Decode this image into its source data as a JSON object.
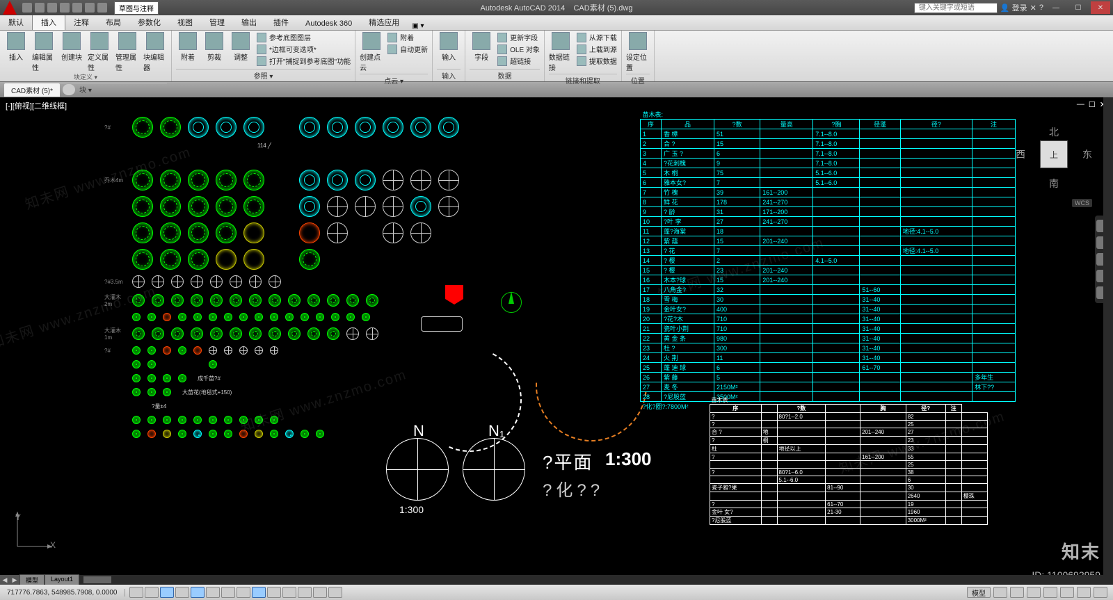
{
  "app": {
    "product": "Autodesk AutoCAD 2014",
    "file": "CAD素材 (5).dwg"
  },
  "titlebar": {
    "combo": "草图与注释",
    "search_placeholder": "键入关键字或短语",
    "login": "登录",
    "help": "?"
  },
  "ribbon_tabs": [
    {
      "label": "默认"
    },
    {
      "label": "插入",
      "active": true
    },
    {
      "label": "注释"
    },
    {
      "label": "布局"
    },
    {
      "label": "参数化"
    },
    {
      "label": "视图"
    },
    {
      "label": "管理"
    },
    {
      "label": "输出"
    },
    {
      "label": "插件"
    },
    {
      "label": "Autodesk 360"
    },
    {
      "label": "精选应用"
    }
  ],
  "panels": {
    "block": {
      "title": "块 ▾",
      "big": [
        {
          "l": "插入"
        },
        {
          "l": "编辑属性"
        },
        {
          "l": "创建块"
        },
        {
          "l": "定义属性"
        },
        {
          "l": "管理属性"
        },
        {
          "l": "块编辑器"
        }
      ],
      "sub": "块定义 ▾"
    },
    "reference": {
      "title": "参照 ▾",
      "small": [
        {
          "l": "附着"
        },
        {
          "l": "剪裁"
        },
        {
          "l": "调整"
        }
      ],
      "lines": [
        "参考底图图层",
        "*边框可变迭项*",
        "打开\"捕捉到参考底图\"功能"
      ]
    },
    "cloud": {
      "title": "点云 ▾",
      "big": [
        {
          "l": "创建点云"
        }
      ],
      "lines": [
        "附着",
        "自动更新"
      ]
    },
    "import": {
      "title": "输入",
      "big": [
        {
          "l": "输入"
        }
      ]
    },
    "data": {
      "title": "数据",
      "big": [
        {
          "l": "字段"
        }
      ],
      "lines": [
        "更新字段",
        "OLE 对象",
        "超链接"
      ]
    },
    "link": {
      "title": "链接和提取",
      "big": [
        {
          "l": "数据链接"
        }
      ],
      "lines": [
        "从源下载",
        "上载到源",
        "提取数据"
      ]
    },
    "loc": {
      "title": "位置",
      "big": [
        {
          "l": "设定位置"
        }
      ]
    }
  },
  "file_tab": "CAD素材 (5)*",
  "view_label": "[-][俯视][二维线框]",
  "viewcube": {
    "n": "北",
    "s": "南",
    "e": "东",
    "w": "西",
    "face": "上",
    "wcs": "WCS"
  },
  "symbol_rows": [
    {
      "lbl": "?#",
      "cells": [
        "g",
        "g",
        "c",
        "c",
        "c",
        "",
        "c",
        "c",
        "c",
        "c",
        "c",
        "c"
      ]
    },
    {
      "lbl": "",
      "dim": "114",
      "cells": [
        "",
        "",
        "",
        "",
        "",
        "",
        "",
        "",
        "",
        "",
        ""
      ]
    },
    {
      "lbl": "乔木4m",
      "cells": [
        "g",
        "g",
        "g",
        "g",
        "g",
        "",
        "c",
        "c",
        "c",
        "w",
        "w",
        "w"
      ]
    },
    {
      "lbl": "",
      "cells": [
        "g",
        "g",
        "g",
        "g",
        "g",
        "",
        "c",
        "w",
        "w",
        "w",
        "c",
        "w"
      ]
    },
    {
      "lbl": "",
      "cells": [
        "g",
        "g",
        "g",
        "g",
        "y",
        "",
        "r",
        "w",
        "",
        "w",
        "w",
        ""
      ]
    },
    {
      "lbl": "",
      "cells": [
        "g",
        "g",
        "g",
        "y",
        "y",
        "",
        "g",
        "",
        "",
        "",
        "",
        ""
      ]
    },
    {
      "lbl": "?#3.5m",
      "size": "shrub",
      "cells": [
        "w",
        "w",
        "w",
        "w",
        "w",
        "w",
        "w",
        "w",
        "",
        "",
        "",
        ""
      ]
    },
    {
      "lbl": "大灌木2m",
      "size": "shrub",
      "cells": [
        "g",
        "g",
        "g",
        "g",
        "g",
        "g",
        "g",
        "g",
        "g",
        "g",
        "g",
        "g",
        "g"
      ]
    },
    {
      "lbl": "",
      "size": "tiny",
      "cells": [
        "g",
        "g",
        "r",
        "g",
        "g",
        "g",
        "g",
        "g",
        "g",
        "g",
        "g",
        "g",
        "g",
        "g",
        "g",
        "g"
      ]
    },
    {
      "lbl": "大灌木1m",
      "size": "shrub",
      "cells": [
        "g",
        "g",
        "g",
        "g",
        "g",
        "g",
        "g",
        "g",
        "g",
        "g",
        "g",
        "w",
        "w"
      ]
    },
    {
      "lbl": "?#",
      "size": "tiny",
      "cells": [
        "g",
        "g",
        "r",
        "g",
        "r",
        "w",
        "w",
        "w",
        "w",
        "w",
        "",
        "",
        "",
        ""
      ]
    },
    {
      "lbl": "",
      "size": "tiny",
      "cells": [
        "g",
        "g",
        "",
        "",
        "",
        "g",
        "",
        "",
        "",
        "",
        "",
        ""
      ]
    },
    {
      "lbl": "",
      "caption": "成千苗?#",
      "size": "tiny",
      "cells": [
        "g",
        "g",
        "g",
        "g"
      ]
    },
    {
      "lbl": "",
      "caption": "大苗花(地毯式+150)",
      "size": "tiny",
      "cells": [
        "g",
        "g",
        "g"
      ]
    },
    {
      "lbl": "",
      "caption": "?量±4",
      "size": "tiny",
      "cells": [
        ""
      ]
    },
    {
      "lbl": "",
      "size": "tiny",
      "cells": [
        "g",
        "g",
        "g",
        "g",
        "g",
        "g",
        "g",
        "g",
        "g",
        "g"
      ]
    },
    {
      "lbl": "",
      "size": "tiny",
      "cells": [
        "g",
        "r",
        "y",
        "g",
        "c",
        "g",
        "g",
        "r",
        "y",
        "g",
        "c",
        "g",
        "g"
      ]
    }
  ],
  "compass1": {
    "N": "N",
    "scale": "1:300"
  },
  "compass2": {
    "N": "N₁"
  },
  "bigtext": {
    "a": "?平面",
    "b": "1:300",
    "c": "?化??"
  },
  "plant_table": {
    "title": "苗木表:",
    "columns": [
      "序",
      "品",
      "?数",
      "量高",
      "?胸",
      "径蓬",
      "径?",
      "注"
    ],
    "rows": [
      [
        "1",
        "香  樟",
        "51",
        "",
        "7.1--8.0",
        "",
        "",
        ""
      ],
      [
        "2",
        "合  ?",
        "15",
        "",
        "7.1--8.0",
        "",
        "",
        ""
      ],
      [
        "3",
        "广 玉 ?",
        "6",
        "",
        "7.1--8.0",
        "",
        "",
        ""
      ],
      [
        "4",
        "?花刺槐",
        "9",
        "",
        "7.1--8.0",
        "",
        "",
        ""
      ],
      [
        "5",
        "木  桐",
        "75",
        "",
        "5.1--6.0",
        "",
        "",
        ""
      ],
      [
        "6",
        "雅本女?",
        "7",
        "",
        "5.1--6.0",
        "",
        "",
        ""
      ],
      [
        "7",
        "竹  槐",
        "39",
        "161--200",
        "",
        "",
        "",
        ""
      ],
      [
        "8",
        "鲜  花",
        "178",
        "241--270",
        "",
        "",
        "",
        ""
      ],
      [
        "9",
        "?  龄",
        "31",
        "171--200",
        "",
        "",
        "",
        ""
      ],
      [
        "10",
        "?叶  李",
        "27",
        "241--270",
        "",
        "",
        "",
        ""
      ],
      [
        "11",
        "蓬?海棠",
        "18",
        "",
        "",
        "",
        "地径:4.1--5.0",
        ""
      ],
      [
        "12",
        "紫  蕴",
        "15",
        "201--240",
        "",
        "",
        "",
        ""
      ],
      [
        "13",
        "?  花",
        "7",
        "",
        "",
        "",
        "地径:4.1--5.0",
        ""
      ],
      [
        "14",
        "?  樱",
        "2",
        "",
        "4.1--5.0",
        "",
        "",
        ""
      ],
      [
        "15",
        "?  樱",
        "23",
        "201--240",
        "",
        "",
        "",
        ""
      ],
      [
        "16",
        "木本?球",
        "15",
        "201--240",
        "",
        "",
        "",
        ""
      ],
      [
        "17",
        "八角金?",
        "32",
        "",
        "",
        "51--60",
        "",
        ""
      ],
      [
        "18",
        "雪  梅",
        "30",
        "",
        "",
        "31--40",
        "",
        ""
      ],
      [
        "19",
        "金叶女?",
        "400",
        "",
        "",
        "31--40",
        "",
        ""
      ],
      [
        "20",
        "?花?木",
        "710",
        "",
        "",
        "31--40",
        "",
        ""
      ],
      [
        "21",
        "瓷叶小荆",
        "710",
        "",
        "",
        "31--40",
        "",
        ""
      ],
      [
        "22",
        "黄 金 条",
        "980",
        "",
        "",
        "31--40",
        "",
        ""
      ],
      [
        "23",
        "杜  ?",
        "300",
        "",
        "",
        "31--40",
        "",
        ""
      ],
      [
        "24",
        "火  荆",
        "11",
        "",
        "",
        "31--40",
        "",
        ""
      ],
      [
        "25",
        "蓬 迪 球",
        "6",
        "",
        "",
        "61--70",
        "",
        ""
      ],
      [
        "26",
        "紫  藤",
        "5",
        "",
        "",
        "",
        "",
        "多年生"
      ],
      [
        "27",
        "麦  冬",
        "2150M²",
        "",
        "",
        "",
        "",
        "林下??"
      ],
      [
        "28",
        "?尼股蓝",
        "3500M²",
        "",
        "",
        "",
        "",
        ""
      ]
    ],
    "footer": "?化?圈?:7800M²"
  },
  "small_table": {
    "title": "苗木表",
    "columns": [
      "序",
      "",
      "?数",
      "",
      "胸",
      "径?",
      "注"
    ],
    "rows": [
      [
        "?",
        "",
        "80?1--2.0",
        "",
        "",
        "82",
        "",
        ""
      ],
      [
        "?",
        "",
        "",
        "",
        "",
        "25",
        "",
        ""
      ],
      [
        "合 ?",
        "地",
        "",
        "",
        "201--240",
        "27",
        "",
        ""
      ],
      [
        "?",
        "桐",
        "",
        "",
        "",
        "23",
        "",
        ""
      ],
      [
        "杜",
        "",
        "地径以上",
        "",
        "",
        "33",
        "",
        ""
      ],
      [
        "?",
        "",
        "",
        "",
        "161--200",
        "55",
        "",
        ""
      ],
      [
        "",
        "",
        "",
        "",
        "",
        "25",
        "",
        ""
      ],
      [
        "?",
        "",
        "80?1--6.0",
        "",
        "",
        "38",
        "",
        ""
      ],
      [
        "",
        "",
        "5.1--6.0",
        "",
        "",
        "6",
        "",
        ""
      ],
      [
        "瓷子雅?果",
        "",
        "",
        "81--90",
        "",
        "30",
        "",
        ""
      ],
      [
        "",
        "",
        "",
        "",
        "",
        "2640",
        "",
        "樱珠"
      ],
      [
        "?",
        "",
        "",
        "61--70",
        "",
        "19",
        "",
        ""
      ],
      [
        "金叶 女?",
        "",
        "",
        "21-30",
        "",
        "1960",
        "",
        ""
      ],
      [
        "?尼股蓝",
        "",
        "",
        "",
        "",
        "3000M²",
        "",
        ""
      ]
    ]
  },
  "layout_tabs": {
    "model": "模型",
    "layout1": "Layout1"
  },
  "status": {
    "coords": "717776.7863, 548985.7908, 0.0000",
    "right_label": "模型"
  },
  "watermark": {
    "brand": "知末",
    "id": "ID: 1100692959",
    "diag": "知未网 www.znzmo.com"
  },
  "colors": {
    "green": "#00ff00",
    "cyan": "#00ffff",
    "white": "#d8d8d8",
    "yellow": "#cccc00",
    "red": "#ff4400",
    "orange": "#e67e22",
    "black": "#000000"
  }
}
